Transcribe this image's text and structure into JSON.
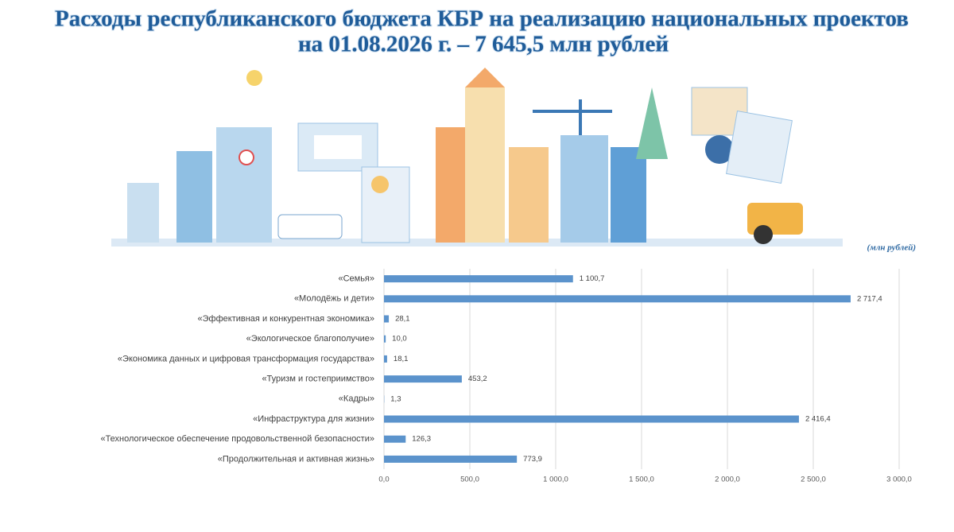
{
  "chart_data": {
    "type": "hbar",
    "title": "Расходы республиканского бюджета КБР на реализацию национальных проектов",
    "subtitle": "на 01.08.2026 г. – 7 645,5 млн рублей",
    "unit_label": "(млн рублей)",
    "categories": [
      "«Семья»",
      "«Молодёжь и дети»",
      "«Эффективная и конкурентная экономика»",
      "«Экологическое благополучие»",
      "«Экономика данных и цифровая трансформация государства»",
      "«Туризм и гостеприимство»",
      "«Кадры»",
      "«Инфраструктура для жизни»",
      "«Технологическое обеспечение продовольственной безопасности»",
      "«Продолжительная и активная жизнь»"
    ],
    "values": [
      1100.7,
      2717.4,
      28.1,
      10.0,
      18.1,
      453.2,
      1.3,
      2416.4,
      126.3,
      773.9
    ],
    "value_labels": [
      "1 100,7",
      "2 717,4",
      "28,1",
      "10,0",
      "18,1",
      "453,2",
      "1,3",
      "2 416,4",
      "126,3",
      "773,9"
    ],
    "color": "#5b93cc",
    "xlim": [
      0,
      3000
    ],
    "xticks": [
      {
        "value": 0,
        "label": "0,0"
      },
      {
        "value": 500,
        "label": "500,0"
      },
      {
        "value": 1000,
        "label": "1 000,0"
      },
      {
        "value": 1500,
        "label": "1 500,0"
      },
      {
        "value": 2000,
        "label": "2 000,0"
      },
      {
        "value": 2500,
        "label": "2 500,0"
      },
      {
        "value": 3000,
        "label": "3 000,0"
      }
    ],
    "grid": true
  }
}
